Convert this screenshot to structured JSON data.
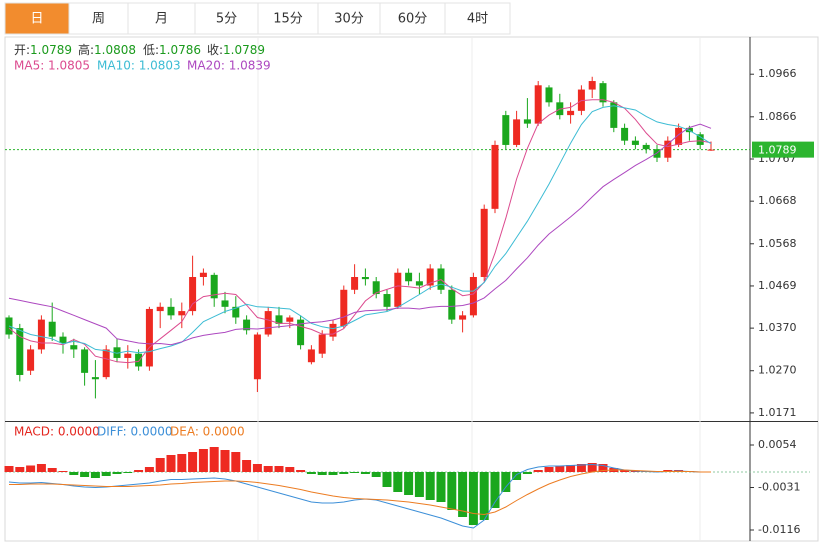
{
  "tabs": [
    "日",
    "周",
    "月",
    "5分",
    "15分",
    "30分",
    "60分",
    "4时"
  ],
  "active_tab": 0,
  "chart_data": [
    {
      "type": "candlestick",
      "ohlc_labels": [
        {
          "label": "开:",
          "value": 1.0789
        },
        {
          "label": "高:",
          "value": 1.0808
        },
        {
          "label": "低:",
          "value": 1.0786
        },
        {
          "label": "收:",
          "value": 1.0789
        }
      ],
      "open": [
        1.0395,
        1.037,
        1.027,
        1.032,
        1.0385,
        1.035,
        1.033,
        1.032,
        1.0255,
        1.0255,
        1.0325,
        1.03,
        1.031,
        1.028,
        1.041,
        1.042,
        1.04,
        1.041,
        1.049,
        1.0495,
        1.0435,
        1.042,
        1.039,
        1.025,
        1.0355,
        1.04,
        1.0385,
        1.039,
        1.029,
        1.031,
        1.035,
        1.0375,
        1.046,
        1.049,
        1.048,
        1.045,
        1.042,
        1.05,
        1.048,
        1.047,
        1.051,
        1.046,
        1.039,
        1.04,
        1.049,
        1.065,
        1.087,
        1.08,
        1.086,
        1.085,
        1.0935,
        1.09,
        1.087,
        1.088,
        1.093,
        1.0945,
        1.09,
        1.084,
        1.081,
        1.08,
        1.079,
        1.077,
        1.08,
        1.084,
        1.0825,
        1.0789
      ],
      "high": [
        1.04,
        1.038,
        1.033,
        1.04,
        1.043,
        1.036,
        1.0345,
        1.0325,
        1.0295,
        1.033,
        1.0345,
        1.033,
        1.032,
        1.042,
        1.043,
        1.044,
        1.043,
        1.054,
        1.051,
        1.05,
        1.0455,
        1.0445,
        1.04,
        1.036,
        1.042,
        1.042,
        1.04,
        1.04,
        1.033,
        1.0365,
        1.039,
        1.047,
        1.052,
        1.051,
        1.049,
        1.046,
        1.051,
        1.051,
        1.05,
        1.052,
        1.052,
        1.047,
        1.041,
        1.05,
        1.066,
        1.081,
        1.088,
        1.088,
        1.091,
        1.095,
        1.094,
        1.092,
        1.09,
        1.094,
        1.096,
        1.095,
        1.0905,
        1.085,
        1.082,
        1.0805,
        1.08,
        1.082,
        1.085,
        1.0845,
        1.083,
        1.0808
      ],
      "low": [
        1.0345,
        1.0245,
        1.026,
        1.031,
        1.034,
        1.031,
        1.03,
        1.0235,
        1.0205,
        1.025,
        1.029,
        1.0275,
        1.027,
        1.027,
        1.037,
        1.039,
        1.037,
        1.04,
        1.047,
        1.042,
        1.0405,
        1.038,
        1.0355,
        1.022,
        1.035,
        1.037,
        1.037,
        1.032,
        1.0285,
        1.03,
        1.034,
        1.037,
        1.045,
        1.047,
        1.044,
        1.041,
        1.0415,
        1.047,
        1.045,
        1.046,
        1.045,
        1.038,
        1.036,
        1.0395,
        1.048,
        1.064,
        1.079,
        1.0795,
        1.084,
        1.0845,
        1.089,
        1.086,
        1.085,
        1.087,
        1.091,
        1.089,
        1.083,
        1.08,
        1.079,
        1.078,
        1.076,
        1.076,
        1.0795,
        1.081,
        1.079,
        1.0786
      ],
      "close": [
        1.0355,
        1.026,
        1.032,
        1.039,
        1.035,
        1.0335,
        1.032,
        1.0265,
        1.025,
        1.032,
        1.03,
        1.031,
        1.028,
        1.0415,
        1.042,
        1.04,
        1.041,
        1.049,
        1.05,
        1.044,
        1.042,
        1.0395,
        1.0365,
        1.0355,
        1.041,
        1.038,
        1.0395,
        1.033,
        1.032,
        1.0355,
        1.038,
        1.046,
        1.049,
        1.0485,
        1.045,
        1.042,
        1.05,
        1.048,
        1.047,
        1.051,
        1.046,
        1.039,
        1.04,
        1.049,
        1.065,
        1.08,
        1.08,
        1.086,
        1.085,
        1.094,
        1.09,
        1.087,
        1.088,
        1.093,
        1.095,
        1.09,
        1.084,
        1.081,
        1.08,
        1.079,
        1.077,
        1.081,
        1.084,
        1.083,
        1.08,
        1.0789
      ],
      "up_color": "#ee2a22",
      "down_color": "#1aa71d",
      "series": [
        {
          "name": "MA5: 1.0805",
          "color": "#dc4b8f",
          "values": [
            1.037,
            1.035,
            1.034,
            1.0335,
            1.0335,
            1.0331,
            1.0343,
            1.0332,
            1.0304,
            1.0298,
            1.0291,
            1.0289,
            1.0292,
            1.0325,
            1.0345,
            1.0365,
            1.0385,
            1.0427,
            1.0444,
            1.0448,
            1.0452,
            1.0449,
            1.0424,
            1.0395,
            1.0389,
            1.0381,
            1.0381,
            1.0374,
            1.0367,
            1.0356,
            1.0356,
            1.0369,
            1.0401,
            1.0434,
            1.0453,
            1.0461,
            1.0469,
            1.0467,
            1.0464,
            1.0476,
            1.0484,
            1.0462,
            1.0446,
            1.045,
            1.0478,
            1.0546,
            1.0628,
            1.072,
            1.0792,
            1.085,
            1.087,
            1.0884,
            1.0888,
            1.0904,
            1.0906,
            1.0906,
            1.09,
            1.0886,
            1.086,
            1.0828,
            1.0802,
            1.0796,
            1.0802,
            1.0808,
            1.081,
            1.0805
          ]
        },
        {
          "name": "MA10: 1.0803",
          "color": "#3dbcd4",
          "values": [
            1.0375,
            1.0365,
            1.0355,
            1.035,
            1.0345,
            1.0333,
            1.0339,
            1.0334,
            1.032,
            1.0317,
            1.0311,
            1.0316,
            1.0312,
            1.0315,
            1.0322,
            1.0328,
            1.0337,
            1.036,
            1.0385,
            1.0397,
            1.0409,
            1.0417,
            1.0426,
            1.042,
            1.0419,
            1.0417,
            1.0415,
            1.0399,
            1.0381,
            1.0373,
            1.0369,
            1.0375,
            1.0388,
            1.0401,
            1.0405,
            1.0409,
            1.0419,
            1.0434,
            1.0449,
            1.0465,
            1.0473,
            1.0466,
            1.0457,
            1.0457,
            1.0477,
            1.0515,
            1.0545,
            1.0583,
            1.0621,
            1.0664,
            1.0708,
            1.0756,
            1.0804,
            1.0848,
            1.0878,
            1.0888,
            1.0892,
            1.0887,
            1.0882,
            1.0867,
            1.0854,
            1.0848,
            1.0844,
            1.0834,
            1.0819,
            1.0803
          ]
        },
        {
          "name": "MA20: 1.0839",
          "color": "#ad48c0",
          "values": [
            1.044,
            1.0435,
            1.043,
            1.0425,
            1.042,
            1.041,
            1.04,
            1.039,
            1.038,
            1.037,
            1.0345,
            1.034,
            1.0335,
            1.0333,
            1.0334,
            1.0331,
            1.0338,
            1.0347,
            1.0353,
            1.0357,
            1.036,
            1.0367,
            1.0369,
            1.0368,
            1.0371,
            1.0373,
            1.0376,
            1.038,
            1.0383,
            1.0385,
            1.0389,
            1.0396,
            1.0407,
            1.0411,
            1.0412,
            1.0413,
            1.0417,
            1.0417,
            1.0415,
            1.0419,
            1.0421,
            1.0421,
            1.0423,
            1.0429,
            1.0441,
            1.0462,
            1.0482,
            1.0509,
            1.0535,
            1.0565,
            1.0591,
            1.0611,
            1.0631,
            1.0653,
            1.0678,
            1.0702,
            1.0719,
            1.0735,
            1.0752,
            1.0766,
            1.0781,
            1.0802,
            1.0824,
            1.0841,
            1.0849,
            1.0839
          ]
        }
      ],
      "ylim": [
        1.0152,
        1.1051
      ],
      "yticks": [
        1.0171,
        {
          "value": 1.027,
          "label": "1.0270"
        },
        {
          "value": 1.037,
          "label": "1.0370"
        },
        1.0469,
        1.0568,
        1.0668,
        1.0767,
        1.0866,
        1.0966
      ],
      "last_price": 1.0789,
      "last_price_color": "#2cb52f"
    },
    {
      "type": "macd",
      "up_color": "#ee2a22",
      "down_color": "#1aa71d",
      "series": [
        {
          "name": "MACD: 0.0000",
          "color": "#e4261f",
          "style": "bar",
          "values": [
            0.0012,
            0.001,
            0.0013,
            0.0016,
            0.0008,
            0.0002,
            -0.0006,
            -0.001,
            -0.0012,
            -0.0008,
            -0.0004,
            -0.0002,
            0.0004,
            0.001,
            0.0028,
            0.0034,
            0.0036,
            0.004,
            0.0046,
            0.005,
            0.0044,
            0.004,
            0.0024,
            0.0016,
            0.0012,
            0.0012,
            0.001,
            0.0004,
            -0.0004,
            -0.0006,
            -0.0006,
            -0.0004,
            -0.0002,
            -0.0004,
            -0.001,
            -0.003,
            -0.004,
            -0.0046,
            -0.005,
            -0.0056,
            -0.006,
            -0.0076,
            -0.009,
            -0.0106,
            -0.0096,
            -0.0072,
            -0.004,
            -0.0016,
            -0.0004,
            0.0004,
            0.001,
            0.0012,
            0.0014,
            0.0016,
            0.0018,
            0.0016,
            0.0008,
            0.0004,
            0.0002,
            0.0002,
            0.0002,
            0.0004,
            0.0004,
            0.0002,
            0.0001,
            0.0
          ]
        },
        {
          "name": "DIFF: 0.0000",
          "color": "#3c8fd8",
          "style": "line",
          "values": [
            -0.002,
            -0.0022,
            -0.0022,
            -0.0021,
            -0.0023,
            -0.0025,
            -0.0028,
            -0.003,
            -0.0031,
            -0.003,
            -0.0028,
            -0.0026,
            -0.0024,
            -0.0022,
            -0.0018,
            -0.0015,
            -0.0015,
            -0.0014,
            -0.0013,
            -0.0012,
            -0.0014,
            -0.0018,
            -0.0024,
            -0.003,
            -0.0036,
            -0.0042,
            -0.0048,
            -0.0054,
            -0.006,
            -0.0062,
            -0.0062,
            -0.006,
            -0.0056,
            -0.0054,
            -0.0056,
            -0.0062,
            -0.0068,
            -0.0074,
            -0.008,
            -0.0086,
            -0.0092,
            -0.01,
            -0.0108,
            -0.0112,
            -0.0096,
            -0.006,
            -0.003,
            -0.0005,
            0.0005,
            0.001,
            0.0012,
            0.0012,
            0.0013,
            0.0014,
            0.0015,
            0.0013,
            0.0008,
            0.0004,
            0.0002,
            0.0001,
            0.0,
            0.0001,
            0.0002,
            0.0001,
            0.0,
            0.0
          ]
        },
        {
          "name": "DEA: 0.0000",
          "color": "#ec7c22",
          "style": "line",
          "values": [
            -0.0025,
            -0.0025,
            -0.0024,
            -0.0024,
            -0.0024,
            -0.0025,
            -0.0026,
            -0.0027,
            -0.0028,
            -0.0029,
            -0.0029,
            -0.0029,
            -0.0028,
            -0.0027,
            -0.0026,
            -0.0024,
            -0.0023,
            -0.0021,
            -0.002,
            -0.0019,
            -0.0018,
            -0.0018,
            -0.0019,
            -0.0021,
            -0.0024,
            -0.0027,
            -0.0031,
            -0.0035,
            -0.004,
            -0.0044,
            -0.0048,
            -0.0051,
            -0.0053,
            -0.0054,
            -0.0055,
            -0.0056,
            -0.0058,
            -0.006,
            -0.0063,
            -0.0066,
            -0.007,
            -0.0074,
            -0.0078,
            -0.0083,
            -0.0085,
            -0.008,
            -0.007,
            -0.0057,
            -0.0045,
            -0.0034,
            -0.0024,
            -0.0016,
            -0.0009,
            -0.0004,
            0.0,
            0.0003,
            0.0004,
            0.0004,
            0.0003,
            0.0002,
            0.0001,
            0.0001,
            0.0001,
            0.0001,
            0.0,
            0.0
          ]
        }
      ],
      "ylim": [
        -0.0136,
        0.0098
      ],
      "yticks": [
        0.0054,
        -0.0031,
        -0.0116
      ]
    }
  ]
}
